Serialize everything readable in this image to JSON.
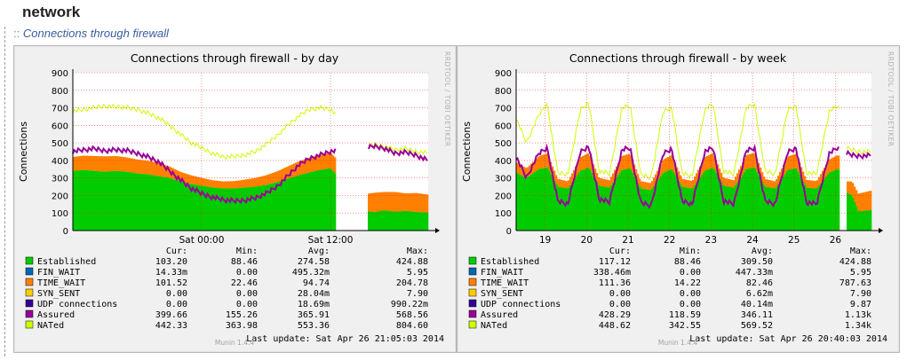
{
  "page": {
    "section_title": "network",
    "subtitle_prefix": "::",
    "subtitle": "Connections through firewall"
  },
  "colors": {
    "Established": "#00cc00",
    "FIN_WAIT": "#0066b3",
    "TIME_WAIT": "#ff8000",
    "SYN_SENT": "#ffcc00",
    "UDP connections": "#330099",
    "Assured": "#990099",
    "NATed": "#ccff00",
    "panel_bg": "#f0f0f0",
    "plot_bg": "#ffffff",
    "grid": "#ff0000"
  },
  "legend_headers": [
    "Cur:",
    "Min:",
    "Avg:",
    "Max:"
  ],
  "chart_data": [
    {
      "type": "area",
      "title": "Connections through firewall - by day",
      "ylabel": "Connections",
      "side_text": "RRDTOOL / TOBI OETIKER",
      "ylim": [
        0,
        900
      ],
      "yticks": [
        0,
        100,
        200,
        300,
        400,
        500,
        600,
        700,
        800,
        900
      ],
      "xlim": [
        -12.0,
        21.1
      ],
      "xticks": [
        {
          "x": 0,
          "label": "Sat 00:00"
        },
        {
          "x": 12,
          "label": "Sat 12:00"
        }
      ],
      "grid": true,
      "gaps": [
        [
          12.5,
          15.5
        ]
      ],
      "series_points": {
        "x": [
          -12,
          -11,
          -10,
          -9,
          -8,
          -7,
          -6,
          -5,
          -4,
          -3,
          -2,
          -1,
          0,
          1,
          2,
          3,
          4,
          5,
          6,
          7,
          8,
          9,
          10,
          11,
          12,
          15.5,
          16,
          17,
          18,
          19,
          20,
          21
        ],
        "Established": [
          340,
          345,
          340,
          335,
          340,
          335,
          325,
          320,
          310,
          300,
          280,
          265,
          255,
          245,
          240,
          240,
          245,
          250,
          260,
          275,
          295,
          315,
          330,
          345,
          355,
          110,
          105,
          115,
          108,
          112,
          106,
          103
        ],
        "TIME_WAIT": [
          80,
          82,
          85,
          88,
          85,
          82,
          80,
          78,
          75,
          65,
          55,
          50,
          45,
          42,
          40,
          42,
          45,
          50,
          55,
          62,
          70,
          78,
          85,
          88,
          90,
          100,
          110,
          105,
          112,
          100,
          108,
          102
        ],
        "Assured": [
          450,
          460,
          465,
          455,
          460,
          455,
          440,
          420,
          390,
          340,
          290,
          240,
          210,
          190,
          175,
          168,
          172,
          185,
          210,
          250,
          310,
          370,
          410,
          430,
          450,
          470,
          480,
          470,
          440,
          445,
          430,
          400
        ],
        "NATed": [
          680,
          690,
          700,
          710,
          705,
          700,
          690,
          670,
          640,
          600,
          550,
          500,
          470,
          440,
          420,
          420,
          430,
          450,
          490,
          540,
          600,
          650,
          690,
          700,
          690,
          480,
          490,
          480,
          460,
          465,
          450,
          442
        ]
      },
      "legend": [
        {
          "name": "Established",
          "cur": "103.20",
          "min": "88.46",
          "avg": "274.58",
          "max": "424.88"
        },
        {
          "name": "FIN_WAIT",
          "cur": "14.33m",
          "min": "0.00",
          "avg": "495.32m",
          "max": "5.95"
        },
        {
          "name": "TIME_WAIT",
          "cur": "101.52",
          "min": "22.46",
          "avg": "94.74",
          "max": "204.78"
        },
        {
          "name": "SYN_SENT",
          "cur": "0.00",
          "min": "0.00",
          "avg": "28.04m",
          "max": "7.90"
        },
        {
          "name": "UDP connections",
          "cur": "0.00",
          "min": "0.00",
          "avg": "18.69m",
          "max": "990.22m"
        },
        {
          "name": "Assured",
          "cur": "399.66",
          "min": "155.26",
          "avg": "365.91",
          "max": "568.56"
        },
        {
          "name": "NATed",
          "cur": "442.33",
          "min": "363.98",
          "avg": "553.36",
          "max": "804.60"
        }
      ],
      "last_update": "Last update:  Sat Apr 26 21:05:03 2014",
      "footer": "Munin 1.4.4"
    },
    {
      "type": "area",
      "title": "Connections through firewall - by week",
      "ylabel": "Connections",
      "side_text": "RRDTOOL / TOBI OETIKER",
      "ylim": [
        0,
        900
      ],
      "yticks": [
        0,
        100,
        200,
        300,
        400,
        500,
        600,
        700,
        800,
        900
      ],
      "xlim": [
        18.3,
        26.87
      ],
      "xticks": [
        {
          "x": 19,
          "label": "19"
        },
        {
          "x": 20,
          "label": "20"
        },
        {
          "x": 21,
          "label": "21"
        },
        {
          "x": 22,
          "label": "22"
        },
        {
          "x": 23,
          "label": "23"
        },
        {
          "x": 24,
          "label": "24"
        },
        {
          "x": 25,
          "label": "25"
        },
        {
          "x": 26,
          "label": "26"
        }
      ],
      "grid": true,
      "gaps": [
        [
          26.1,
          26.25
        ]
      ],
      "series_points": {
        "x": [
          18.3,
          18.55,
          18.85,
          19.05,
          19.3,
          19.55,
          19.85,
          20.05,
          20.3,
          20.55,
          20.85,
          21.05,
          21.3,
          21.55,
          21.85,
          22.05,
          22.3,
          22.55,
          22.85,
          23.05,
          23.3,
          23.55,
          23.85,
          24.05,
          24.3,
          24.55,
          24.85,
          25.05,
          25.3,
          25.55,
          25.85,
          26.05,
          26.1,
          26.25,
          26.4,
          26.55,
          26.87
        ],
        "Established": [
          330,
          300,
          350,
          360,
          250,
          240,
          340,
          360,
          255,
          245,
          345,
          355,
          240,
          230,
          330,
          350,
          250,
          240,
          340,
          360,
          255,
          245,
          350,
          360,
          250,
          240,
          345,
          355,
          245,
          240,
          330,
          350,
          345,
          220,
          200,
          110,
          117
        ],
        "TIME_WAIT": [
          60,
          55,
          75,
          80,
          45,
          40,
          78,
          82,
          45,
          42,
          80,
          84,
          42,
          40,
          75,
          80,
          45,
          42,
          78,
          82,
          45,
          42,
          80,
          84,
          44,
          40,
          78,
          82,
          44,
          42,
          75,
          80,
          80,
          60,
          80,
          100,
          111
        ],
        "Assured": [
          420,
          300,
          440,
          470,
          170,
          150,
          450,
          480,
          180,
          160,
          460,
          470,
          160,
          140,
          440,
          465,
          170,
          150,
          450,
          470,
          170,
          150,
          455,
          470,
          170,
          150,
          450,
          470,
          160,
          150,
          440,
          470,
          465,
          440,
          430,
          425,
          428
        ],
        "NATed": [
          640,
          500,
          660,
          720,
          330,
          320,
          690,
          730,
          340,
          320,
          700,
          710,
          320,
          300,
          680,
          700,
          330,
          310,
          690,
          720,
          340,
          320,
          700,
          720,
          340,
          320,
          690,
          710,
          330,
          320,
          680,
          710,
          700,
          470,
          460,
          450,
          449
        ]
      },
      "legend": [
        {
          "name": "Established",
          "cur": "117.12",
          "min": "88.46",
          "avg": "309.50",
          "max": "424.88"
        },
        {
          "name": "FIN_WAIT",
          "cur": "338.46m",
          "min": "0.00",
          "avg": "447.33m",
          "max": "5.95"
        },
        {
          "name": "TIME_WAIT",
          "cur": "111.36",
          "min": "14.22",
          "avg": "82.46",
          "max": "787.63"
        },
        {
          "name": "SYN_SENT",
          "cur": "0.00",
          "min": "0.00",
          "avg": "6.62m",
          "max": "7.90"
        },
        {
          "name": "UDP connections",
          "cur": "0.00",
          "min": "0.00",
          "avg": "40.14m",
          "max": "9.87"
        },
        {
          "name": "Assured",
          "cur": "428.29",
          "min": "118.59",
          "avg": "346.11",
          "max": "1.13k"
        },
        {
          "name": "NATed",
          "cur": "448.62",
          "min": "342.55",
          "avg": "569.52",
          "max": "1.34k"
        }
      ],
      "last_update": "Last update:  Sat Apr 26 20:40:03 2014",
      "footer": "Munin 1.4.4"
    }
  ]
}
